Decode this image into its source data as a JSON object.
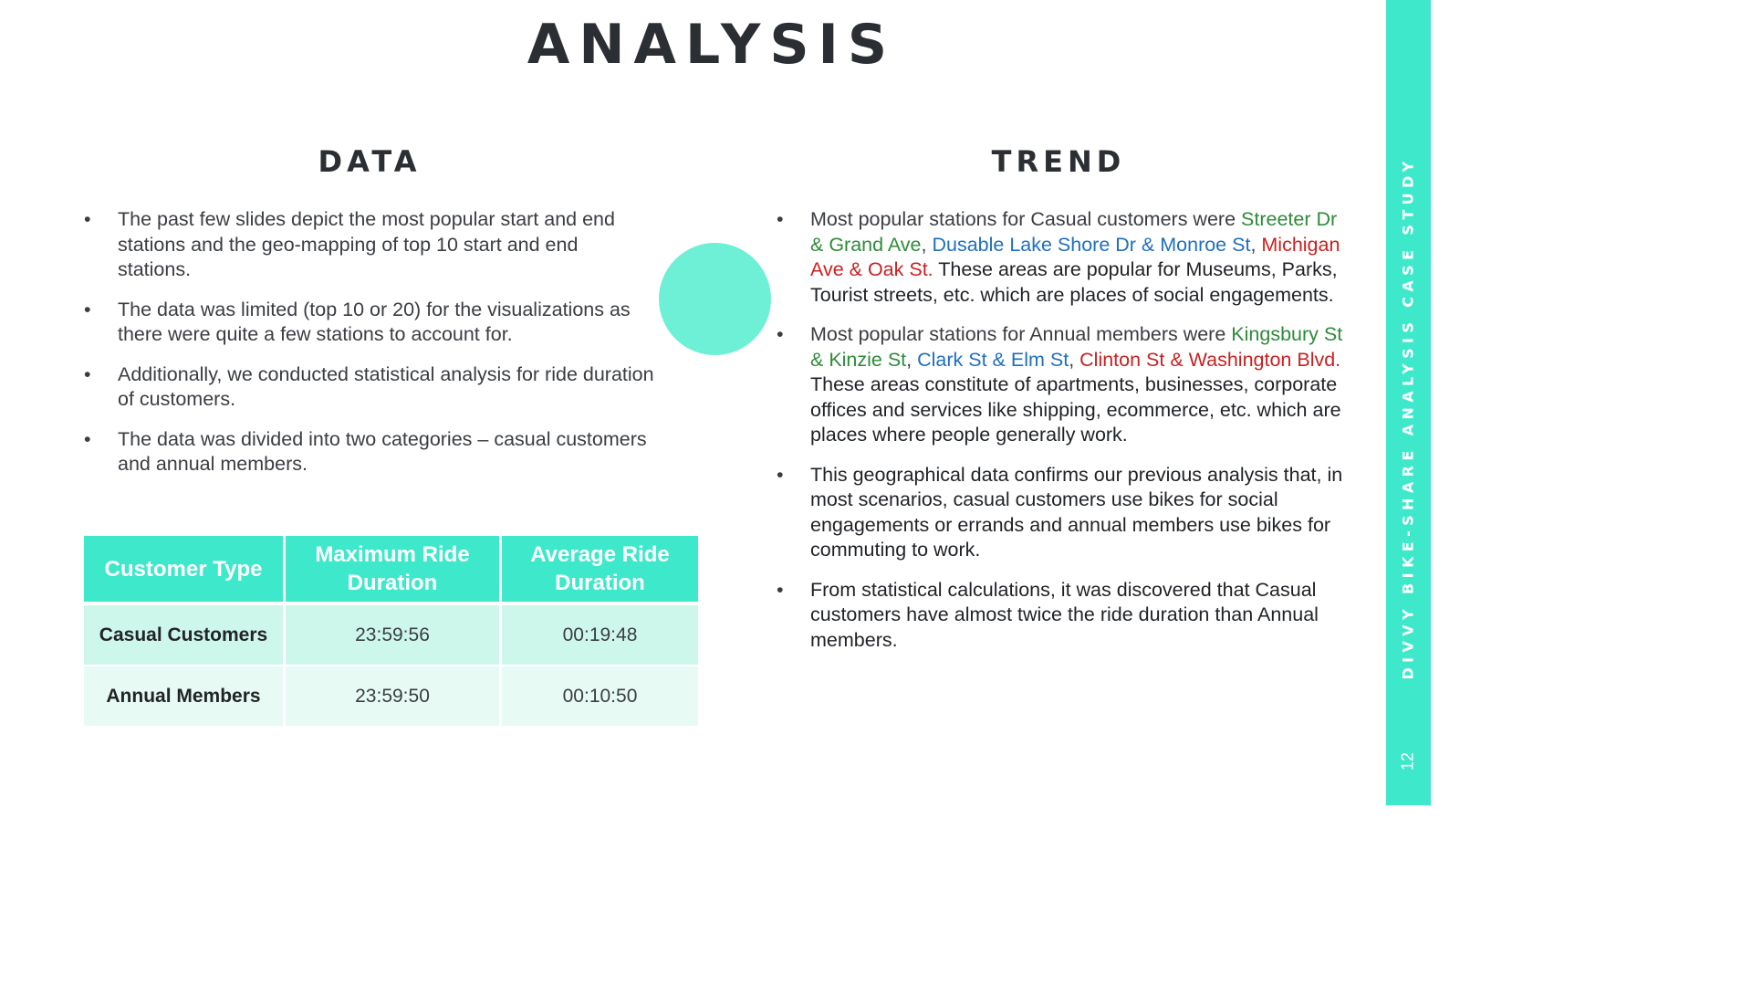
{
  "title": "ANALYSIS",
  "data_section": {
    "heading": "DATA",
    "bullets": [
      "The past few slides depict the most popular start and end stations and the geo-mapping of top 10 start and end stations.",
      "The data was limited (top 10 or 20) for the visualizations as there were quite a few stations to account for.",
      "Additionally, we conducted statistical analysis for ride duration of customers.",
      "The data was divided into two categories – casual customers and annual members."
    ]
  },
  "table": {
    "headers": [
      "Customer Type",
      "Maximum Ride Duration",
      "Average Ride Duration"
    ],
    "rows": [
      [
        "Casual Customers",
        "23:59:56",
        "00:19:48"
      ],
      [
        "Annual Members",
        "23:59:50",
        "00:10:50"
      ]
    ]
  },
  "trend_section": {
    "heading": "TREND",
    "b1": {
      "intro": "Most popular stations for Casual customers were ",
      "s1": "Streeter Dr & Grand Ave",
      "s2": "Dusable Lake Shore Dr & Monroe St",
      "s3": "Michigan Ave & Oak St.",
      "rest": " These areas are popular for Museums, Parks, Tourist streets, etc. which are places of social engagements."
    },
    "b2": {
      "intro": "Most popular stations for Annual members were ",
      "s1": "Kingsbury St & Kinzie St",
      "s2": "Clark St & Elm St",
      "s3": "Clinton St & Washington Blvd.",
      "rest": " These areas constitute of apartments, businesses, corporate offices and services like shipping, ecommerce, etc. which are places where people generally work."
    },
    "b3": "This geographical data confirms our previous analysis that, in most scenarios, casual customers use bikes for social engagements or errands and annual members use bikes for commuting to work.",
    "b4": "From statistical calculations, it was discovered that Casual customers have almost twice the ride duration than Annual members."
  },
  "sidebar": {
    "text": "DIVVY BIKE-SHARE ANALYSIS CASE STUDY",
    "page_number": "12"
  },
  "colors": {
    "accent": "#3ee8cb",
    "circle": "#6ef0d6",
    "station_1": "#2e8b3a",
    "station_2": "#1f6fbf",
    "station_3": "#cc1f1f"
  }
}
